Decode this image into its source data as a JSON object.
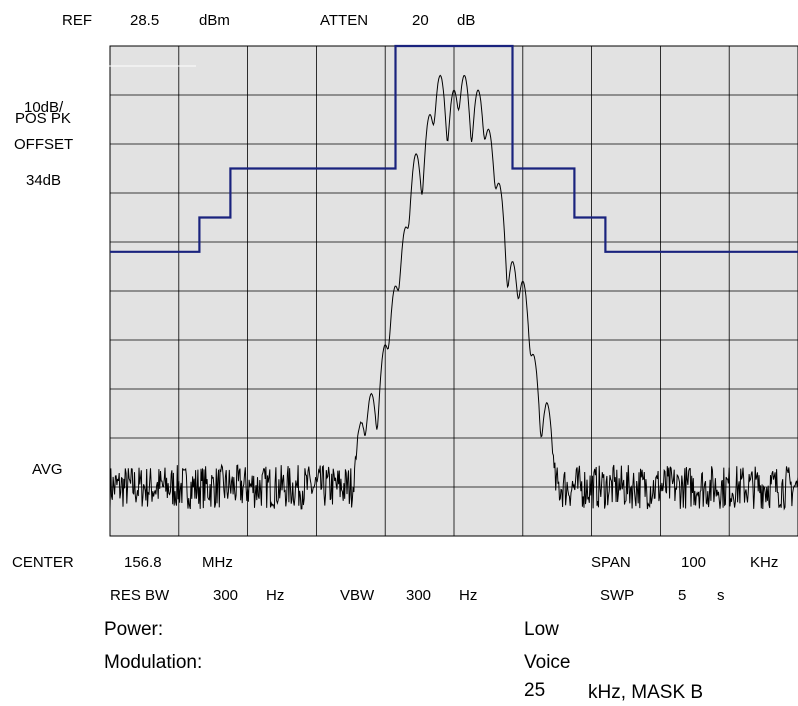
{
  "header": {
    "ref_label": "REF",
    "ref_value": "28.5",
    "ref_unit": "dBm",
    "atten_label": "ATTEN",
    "atten_value": "20",
    "atten_unit": "dB"
  },
  "left_labels": {
    "scale": "10dB/",
    "detector": "POS PK",
    "offset_label": "OFFSET",
    "offset_value": "34dB",
    "avg": "AVG"
  },
  "footer": {
    "center_label": "CENTER",
    "center_value": "156.8",
    "center_unit": "MHz",
    "span_label": "SPAN",
    "span_value": "100",
    "span_unit": "KHz",
    "res_bw_label": "RES BW",
    "res_bw_value": "300",
    "res_bw_unit": "Hz",
    "vbw_label": "VBW",
    "vbw_value": "300",
    "vbw_unit": "Hz",
    "swp_label": "SWP",
    "swp_value": "5",
    "swp_unit": "s"
  },
  "notes": {
    "power_label": "Power:",
    "power_value": "Low",
    "modulation_label": "Modulation:",
    "modulation_value": "Voice",
    "channel_value": "25",
    "channel_rest": "kHz,  MASK B"
  },
  "colors": {
    "plot_bg": "#e2e2e2",
    "grid": "#000000",
    "mask": "#1a237e",
    "trace": "#000000"
  },
  "chart_data": {
    "type": "line",
    "grid": true,
    "x_unit_span_khz": 100,
    "x_divisions": 10,
    "y_divisions": 10,
    "y_units": "dB relative to reference",
    "ylim": [
      -100,
      0
    ],
    "series": [
      {
        "role": "mask",
        "points": [
          [
            -50,
            -42
          ],
          [
            -37,
            -42
          ],
          [
            -37,
            -35
          ],
          [
            -32.5,
            -35
          ],
          [
            -32.5,
            -25
          ],
          [
            -8.5,
            -25
          ],
          [
            -8.5,
            0
          ],
          [
            8.5,
            0
          ],
          [
            8.5,
            -25
          ],
          [
            17.5,
            -25
          ],
          [
            17.5,
            -35
          ],
          [
            22,
            -35
          ],
          [
            22,
            -42
          ],
          [
            50,
            -42
          ]
        ]
      },
      {
        "role": "trace",
        "noise_floor_db": -90,
        "peaks": [
          {
            "offset_khz": -13.5,
            "level_db": -77
          },
          {
            "offset_khz": -12,
            "level_db": -71
          },
          {
            "offset_khz": -10,
            "level_db": -61
          },
          {
            "offset_khz": -8.5,
            "level_db": -49
          },
          {
            "offset_khz": -7,
            "level_db": -37
          },
          {
            "offset_khz": -5.5,
            "level_db": -22
          },
          {
            "offset_khz": -3.5,
            "level_db": -14
          },
          {
            "offset_khz": -2,
            "level_db": -6
          },
          {
            "offset_khz": 0,
            "level_db": -9
          },
          {
            "offset_khz": 1.5,
            "level_db": -6
          },
          {
            "offset_khz": 3.5,
            "level_db": -9
          },
          {
            "offset_khz": 5,
            "level_db": -17
          },
          {
            "offset_khz": 6.5,
            "level_db": -28
          },
          {
            "offset_khz": 8.5,
            "level_db": -44
          },
          {
            "offset_khz": 10,
            "level_db": -48
          },
          {
            "offset_khz": 11.5,
            "level_db": -63
          },
          {
            "offset_khz": 13.5,
            "level_db": -73
          }
        ]
      }
    ]
  }
}
